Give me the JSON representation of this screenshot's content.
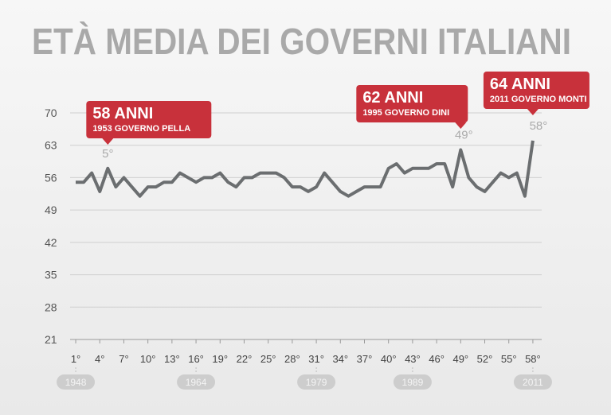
{
  "chart_data": {
    "type": "line",
    "title": "ETÀ MEDIA DEI GOVERNI ITALIANI",
    "x": [
      1,
      2,
      3,
      4,
      5,
      6,
      7,
      8,
      9,
      10,
      11,
      12,
      13,
      14,
      15,
      16,
      17,
      18,
      19,
      20,
      21,
      22,
      23,
      24,
      25,
      26,
      27,
      28,
      29,
      30,
      31,
      32,
      33,
      34,
      35,
      36,
      37,
      38,
      39,
      40,
      41,
      42,
      43,
      44,
      45,
      46,
      47,
      48,
      49,
      50,
      51,
      52,
      53,
      54,
      55,
      56,
      57,
      58
    ],
    "values": [
      55,
      55,
      57,
      53,
      58,
      54,
      56,
      54,
      52,
      54,
      54,
      55,
      55,
      57,
      56,
      55,
      56,
      56,
      57,
      55,
      54,
      56,
      56,
      57,
      57,
      57,
      56,
      54,
      54,
      53,
      54,
      57,
      55,
      53,
      52,
      53,
      54,
      54,
      54,
      58,
      59,
      57,
      58,
      58,
      58,
      59,
      59,
      54,
      62,
      56,
      54,
      53,
      55,
      57,
      56,
      57,
      52,
      64
    ],
    "color": "#6b6e70",
    "xlim": [
      0.3,
      59.1
    ],
    "ylim": [
      21,
      70
    ],
    "yticks": [
      21,
      28,
      35,
      42,
      49,
      56,
      63,
      70
    ],
    "xticks": [
      {
        "value": 1,
        "label": "1°"
      },
      {
        "value": 4,
        "label": "4°"
      },
      {
        "value": 7,
        "label": "7°"
      },
      {
        "value": 10,
        "label": "10°"
      },
      {
        "value": 13,
        "label": "13°"
      },
      {
        "value": 16,
        "label": "16°"
      },
      {
        "value": 19,
        "label": "19°"
      },
      {
        "value": 22,
        "label": "22°"
      },
      {
        "value": 25,
        "label": "25°"
      },
      {
        "value": 28,
        "label": "28°"
      },
      {
        "value": 31,
        "label": "31°"
      },
      {
        "value": 34,
        "label": "34°"
      },
      {
        "value": 37,
        "label": "37°"
      },
      {
        "value": 40,
        "label": "40°"
      },
      {
        "value": 43,
        "label": "43°"
      },
      {
        "value": 46,
        "label": "46°"
      },
      {
        "value": 49,
        "label": "49°"
      },
      {
        "value": 52,
        "label": "52°"
      },
      {
        "value": 55,
        "label": "55°"
      },
      {
        "value": 58,
        "label": "58°"
      }
    ],
    "years": [
      {
        "x": 1,
        "label": "1948"
      },
      {
        "x": 16,
        "label": "1964"
      },
      {
        "x": 31,
        "label": "1979"
      },
      {
        "x": 43,
        "label": "1989"
      },
      {
        "x": 58,
        "label": "2011"
      }
    ],
    "grid": true,
    "annotation_color": "#c8313b",
    "annotations": [
      {
        "x": 5,
        "title": "58 ANNI",
        "subtitle": "1953 GOVERNO PELLA",
        "point_label": "5°"
      },
      {
        "x": 49,
        "title": "62 ANNI",
        "subtitle": "1995 GOVERNO DINI",
        "point_label": "49°"
      },
      {
        "x": 58,
        "title": "64 ANNI",
        "subtitle": "2011 GOVERNO MONTI",
        "point_label": "58°"
      }
    ]
  }
}
